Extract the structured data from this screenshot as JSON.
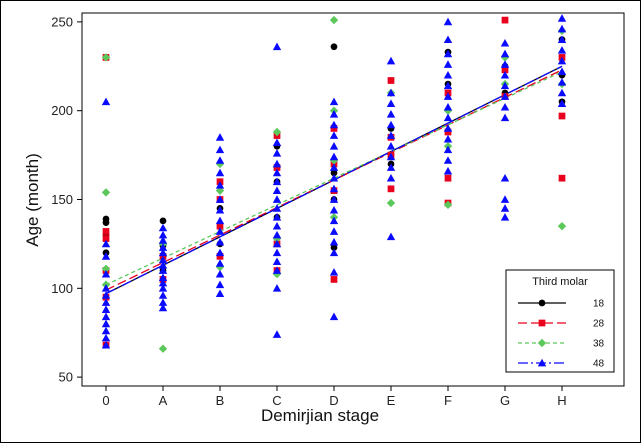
{
  "chart_data": {
    "type": "scatter",
    "xlabel": "Demirjian stage",
    "ylabel": "Age (month)",
    "categories": [
      "0",
      "A",
      "B",
      "C",
      "D",
      "E",
      "F",
      "G",
      "H"
    ],
    "ylim": [
      45,
      255
    ],
    "yticks": [
      50,
      100,
      150,
      200,
      250
    ],
    "legend": {
      "title": "Third molar",
      "placement": "bottom-right"
    },
    "series": [
      {
        "name": "18",
        "color": "#000000",
        "marker": "circle",
        "dash": "solid",
        "fit": {
          "intercept": 97,
          "slope": 16
        },
        "points": [
          [
            0,
            137
          ],
          [
            0,
            139
          ],
          [
            0,
            130
          ],
          [
            0,
            120
          ],
          [
            1,
            138
          ],
          [
            1,
            124
          ],
          [
            1,
            110
          ],
          [
            2,
            145
          ],
          [
            2,
            125
          ],
          [
            3,
            180
          ],
          [
            3,
            160
          ],
          [
            3,
            140
          ],
          [
            4,
            236
          ],
          [
            4,
            123
          ],
          [
            4,
            165
          ],
          [
            4,
            150
          ],
          [
            5,
            190
          ],
          [
            5,
            170
          ],
          [
            6,
            233
          ],
          [
            6,
            215
          ],
          [
            7,
            225
          ],
          [
            7,
            210
          ],
          [
            8,
            205
          ],
          [
            8,
            240
          ],
          [
            8,
            220
          ]
        ]
      },
      {
        "name": "28",
        "color": "#e8001c",
        "marker": "square",
        "dash": "long",
        "fit": {
          "intercept": 99,
          "slope": 15.5
        },
        "points": [
          [
            0,
            230
          ],
          [
            0,
            132
          ],
          [
            0,
            128
          ],
          [
            0,
            110
          ],
          [
            0,
            95
          ],
          [
            0,
            68
          ],
          [
            1,
            118
          ],
          [
            1,
            105
          ],
          [
            2,
            160
          ],
          [
            2,
            150
          ],
          [
            2,
            135
          ],
          [
            2,
            118
          ],
          [
            3,
            125
          ],
          [
            3,
            110
          ],
          [
            3,
            186
          ],
          [
            3,
            168
          ],
          [
            4,
            105
          ],
          [
            4,
            190
          ],
          [
            4,
            170
          ],
          [
            4,
            155
          ],
          [
            5,
            217
          ],
          [
            5,
            156
          ],
          [
            5,
            185
          ],
          [
            5,
            175
          ],
          [
            6,
            210
          ],
          [
            6,
            188
          ],
          [
            6,
            162
          ],
          [
            6,
            148
          ],
          [
            7,
            251
          ],
          [
            7,
            223
          ],
          [
            7,
            208
          ],
          [
            8,
            197
          ],
          [
            8,
            162
          ],
          [
            8,
            230
          ]
        ]
      },
      {
        "name": "38",
        "color": "#5cc85c",
        "marker": "diamond",
        "dash": "short",
        "fit": {
          "intercept": 102,
          "slope": 15
        },
        "points": [
          [
            0,
            230
          ],
          [
            0,
            154
          ],
          [
            0,
            111
          ],
          [
            0,
            102
          ],
          [
            1,
            66
          ],
          [
            1,
            125
          ],
          [
            2,
            170
          ],
          [
            2,
            155
          ],
          [
            2,
            112
          ],
          [
            3,
            188
          ],
          [
            3,
            128
          ],
          [
            3,
            108
          ],
          [
            4,
            251
          ],
          [
            4,
            172
          ],
          [
            4,
            200
          ],
          [
            4,
            140
          ],
          [
            5,
            210
          ],
          [
            5,
            148
          ],
          [
            6,
            147
          ],
          [
            6,
            200
          ],
          [
            6,
            180
          ],
          [
            7,
            230
          ],
          [
            7,
            215
          ],
          [
            8,
            135
          ],
          [
            8,
            215
          ],
          [
            8,
            245
          ]
        ]
      },
      {
        "name": "48",
        "color": "#0a0aff",
        "marker": "triangle",
        "dash": "dashdot",
        "fit": {
          "intercept": 97,
          "slope": 16
        },
        "points": [
          [
            0,
            205
          ],
          [
            0,
            125
          ],
          [
            0,
            118
          ],
          [
            0,
            108
          ],
          [
            0,
            100
          ],
          [
            0,
            96
          ],
          [
            0,
            92
          ],
          [
            0,
            88
          ],
          [
            0,
            84
          ],
          [
            0,
            80
          ],
          [
            0,
            76
          ],
          [
            0,
            72
          ],
          [
            0,
            68
          ],
          [
            1,
            134
          ],
          [
            1,
            130
          ],
          [
            1,
            127
          ],
          [
            1,
            123
          ],
          [
            1,
            120
          ],
          [
            1,
            116
          ],
          [
            1,
            113
          ],
          [
            1,
            110
          ],
          [
            1,
            106
          ],
          [
            1,
            103
          ],
          [
            1,
            100
          ],
          [
            1,
            96
          ],
          [
            1,
            92
          ],
          [
            1,
            89
          ],
          [
            2,
            185
          ],
          [
            2,
            178
          ],
          [
            2,
            172
          ],
          [
            2,
            165
          ],
          [
            2,
            158
          ],
          [
            2,
            150
          ],
          [
            2,
            144
          ],
          [
            2,
            138
          ],
          [
            2,
            132
          ],
          [
            2,
            126
          ],
          [
            2,
            120
          ],
          [
            2,
            114
          ],
          [
            2,
            108
          ],
          [
            2,
            102
          ],
          [
            2,
            97
          ],
          [
            3,
            236
          ],
          [
            3,
            182
          ],
          [
            3,
            176
          ],
          [
            3,
            170
          ],
          [
            3,
            165
          ],
          [
            3,
            160
          ],
          [
            3,
            155
          ],
          [
            3,
            150
          ],
          [
            3,
            145
          ],
          [
            3,
            140
          ],
          [
            3,
            135
          ],
          [
            3,
            130
          ],
          [
            3,
            125
          ],
          [
            3,
            120
          ],
          [
            3,
            115
          ],
          [
            3,
            110
          ],
          [
            3,
            100
          ],
          [
            3,
            74
          ],
          [
            4,
            205
          ],
          [
            4,
            198
          ],
          [
            4,
            192
          ],
          [
            4,
            186
          ],
          [
            4,
            180
          ],
          [
            4,
            174
          ],
          [
            4,
            168
          ],
          [
            4,
            162
          ],
          [
            4,
            156
          ],
          [
            4,
            150
          ],
          [
            4,
            144
          ],
          [
            4,
            138
          ],
          [
            4,
            132
          ],
          [
            4,
            126
          ],
          [
            4,
            120
          ],
          [
            4,
            109
          ],
          [
            4,
            84
          ],
          [
            5,
            228
          ],
          [
            5,
            210
          ],
          [
            5,
            204
          ],
          [
            5,
            198
          ],
          [
            5,
            192
          ],
          [
            5,
            186
          ],
          [
            5,
            180
          ],
          [
            5,
            174
          ],
          [
            5,
            168
          ],
          [
            5,
            162
          ],
          [
            5,
            129
          ],
          [
            6,
            250
          ],
          [
            6,
            240
          ],
          [
            6,
            232
          ],
          [
            6,
            226
          ],
          [
            6,
            220
          ],
          [
            6,
            214
          ],
          [
            6,
            208
          ],
          [
            6,
            202
          ],
          [
            6,
            196
          ],
          [
            6,
            190
          ],
          [
            6,
            184
          ],
          [
            6,
            178
          ],
          [
            6,
            172
          ],
          [
            6,
            166
          ],
          [
            7,
            238
          ],
          [
            7,
            232
          ],
          [
            7,
            226
          ],
          [
            7,
            220
          ],
          [
            7,
            214
          ],
          [
            7,
            208
          ],
          [
            7,
            202
          ],
          [
            7,
            196
          ],
          [
            7,
            162
          ],
          [
            7,
            150
          ],
          [
            7,
            145
          ],
          [
            7,
            140
          ],
          [
            8,
            252
          ],
          [
            8,
            246
          ],
          [
            8,
            240
          ],
          [
            8,
            234
          ],
          [
            8,
            228
          ],
          [
            8,
            222
          ],
          [
            8,
            216
          ],
          [
            8,
            210
          ],
          [
            8,
            204
          ]
        ]
      }
    ]
  }
}
